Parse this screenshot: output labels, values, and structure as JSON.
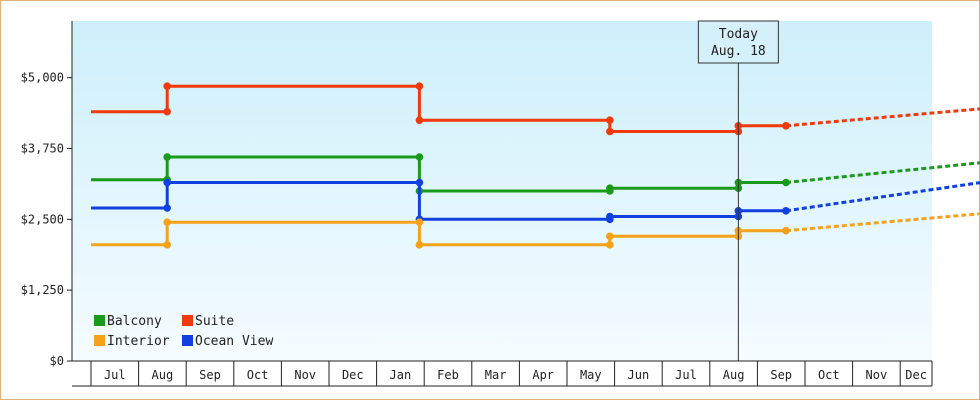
{
  "chart_data": {
    "type": "line",
    "title": "",
    "xlabel": "",
    "ylabel": "",
    "ylim": [
      0,
      6000
    ],
    "y_ticks": [
      0,
      1250,
      2500,
      3750,
      5000
    ],
    "y_tick_labels": [
      "$0",
      "$1,250",
      "$2,500",
      "$3,750",
      "$5,000"
    ],
    "x_months": [
      "Jul",
      "Aug",
      "Sep",
      "Oct",
      "Nov",
      "Dec",
      "Jan",
      "Feb",
      "Mar",
      "Apr",
      "May",
      "Jun",
      "Jul",
      "Aug",
      "Sep",
      "Oct",
      "Nov",
      "Dec"
    ],
    "x_start_month": 6,
    "today": {
      "line1": "Today",
      "line2": "Aug. 18",
      "month": 19.6
    },
    "grid": false,
    "background": "sky-gradient",
    "legend_position": "bottom-left",
    "legend": [
      {
        "name": "Balcony",
        "color": "#1a9a1a"
      },
      {
        "name": "Suite",
        "color": "#f03a0c"
      },
      {
        "name": "Interior",
        "color": "#f5a21a"
      },
      {
        "name": "Ocean View",
        "color": "#1140e0"
      }
    ],
    "series": [
      {
        "name": "Suite",
        "color": "#f03a0c",
        "points": [
          [
            6,
            4400
          ],
          [
            7.6,
            4400
          ],
          [
            7.6,
            4850
          ],
          [
            12.9,
            4850
          ],
          [
            12.9,
            4250
          ],
          [
            16.9,
            4250
          ],
          [
            16.9,
            4050
          ],
          [
            19.6,
            4050
          ],
          [
            19.6,
            4150
          ],
          [
            20.6,
            4150
          ]
        ],
        "markers": [
          [
            7.6,
            4400
          ],
          [
            7.6,
            4850
          ],
          [
            12.9,
            4850
          ],
          [
            12.9,
            4250
          ],
          [
            16.9,
            4250
          ],
          [
            16.9,
            4050
          ],
          [
            19.6,
            4050
          ],
          [
            19.6,
            4150
          ],
          [
            20.6,
            4150
          ]
        ],
        "projection": [
          [
            20.6,
            4150
          ],
          [
            24.7,
            4450
          ]
        ]
      },
      {
        "name": "Balcony",
        "color": "#1a9a1a",
        "points": [
          [
            6,
            3200
          ],
          [
            7.6,
            3200
          ],
          [
            7.6,
            3600
          ],
          [
            12.9,
            3600
          ],
          [
            12.9,
            3000
          ],
          [
            16.9,
            3000
          ],
          [
            16.9,
            3050
          ],
          [
            19.6,
            3050
          ],
          [
            19.6,
            3150
          ],
          [
            20.6,
            3150
          ]
        ],
        "markers": [
          [
            7.6,
            3200
          ],
          [
            7.6,
            3600
          ],
          [
            12.9,
            3600
          ],
          [
            12.9,
            3000
          ],
          [
            16.9,
            3000
          ],
          [
            16.9,
            3050
          ],
          [
            19.6,
            3050
          ],
          [
            19.6,
            3150
          ],
          [
            20.6,
            3150
          ]
        ],
        "projection": [
          [
            20.6,
            3150
          ],
          [
            24.7,
            3500
          ]
        ]
      },
      {
        "name": "Ocean View",
        "color": "#1140e0",
        "points": [
          [
            6,
            2700
          ],
          [
            7.6,
            2700
          ],
          [
            7.6,
            3150
          ],
          [
            12.9,
            3150
          ],
          [
            12.9,
            2500
          ],
          [
            16.9,
            2500
          ],
          [
            16.9,
            2550
          ],
          [
            19.6,
            2550
          ],
          [
            19.6,
            2650
          ],
          [
            20.6,
            2650
          ]
        ],
        "markers": [
          [
            7.6,
            2700
          ],
          [
            7.6,
            3150
          ],
          [
            12.9,
            3150
          ],
          [
            12.9,
            2500
          ],
          [
            16.9,
            2500
          ],
          [
            16.9,
            2550
          ],
          [
            19.6,
            2550
          ],
          [
            19.6,
            2650
          ],
          [
            20.6,
            2650
          ]
        ],
        "projection": [
          [
            20.6,
            2650
          ],
          [
            24.7,
            3150
          ]
        ]
      },
      {
        "name": "Interior",
        "color": "#f5a21a",
        "points": [
          [
            6,
            2050
          ],
          [
            7.6,
            2050
          ],
          [
            7.6,
            2450
          ],
          [
            12.9,
            2450
          ],
          [
            12.9,
            2050
          ],
          [
            16.9,
            2050
          ],
          [
            16.9,
            2200
          ],
          [
            19.6,
            2200
          ],
          [
            19.6,
            2300
          ],
          [
            20.6,
            2300
          ]
        ],
        "markers": [
          [
            7.6,
            2050
          ],
          [
            7.6,
            2450
          ],
          [
            12.9,
            2450
          ],
          [
            12.9,
            2050
          ],
          [
            16.9,
            2050
          ],
          [
            16.9,
            2200
          ],
          [
            19.6,
            2200
          ],
          [
            19.6,
            2300
          ],
          [
            20.6,
            2300
          ]
        ],
        "projection": [
          [
            20.6,
            2300
          ],
          [
            24.7,
            2600
          ]
        ]
      }
    ]
  }
}
